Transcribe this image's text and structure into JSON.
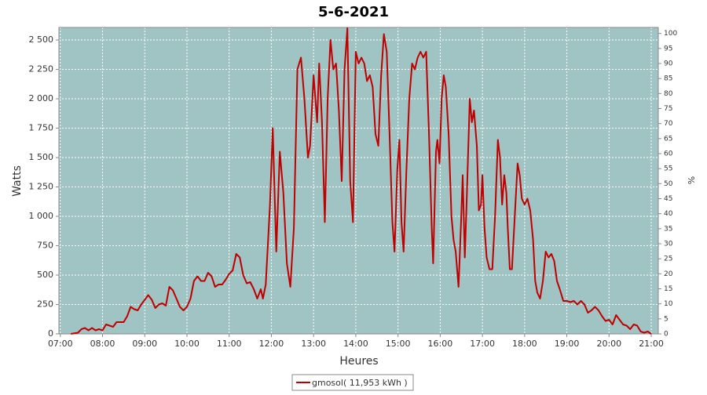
{
  "chart_data": {
    "type": "line",
    "title": "5-6-2021",
    "x_label": "Heures",
    "y_label": "Watts",
    "y2_label": "%",
    "x": [
      "07:15",
      "07:25",
      "07:30",
      "07:35",
      "07:40",
      "07:45",
      "07:50",
      "07:55",
      "08:00",
      "08:05",
      "08:15",
      "08:20",
      "08:25",
      "08:30",
      "08:35",
      "08:40",
      "08:45",
      "08:50",
      "08:55",
      "09:00",
      "09:05",
      "09:10",
      "09:15",
      "09:20",
      "09:25",
      "09:30",
      "09:35",
      "09:40",
      "09:45",
      "09:50",
      "09:55",
      "10:00",
      "10:05",
      "10:10",
      "10:15",
      "10:20",
      "10:25",
      "10:30",
      "10:35",
      "10:40",
      "10:45",
      "10:50",
      "10:55",
      "11:00",
      "11:05",
      "11:10",
      "11:15",
      "11:20",
      "11:25",
      "11:30",
      "11:35",
      "11:40",
      "11:45",
      "11:48",
      "11:52",
      "11:58",
      "12:02",
      "12:07",
      "12:12",
      "12:17",
      "12:22",
      "12:27",
      "12:32",
      "12:37",
      "12:42",
      "12:47",
      "12:52",
      "12:55",
      "13:00",
      "13:05",
      "13:08",
      "13:12",
      "13:16",
      "13:20",
      "13:24",
      "13:28",
      "13:32",
      "13:36",
      "13:40",
      "13:44",
      "13:48",
      "13:52",
      "13:56",
      "14:00",
      "14:04",
      "14:08",
      "14:12",
      "14:16",
      "14:20",
      "14:24",
      "14:28",
      "14:32",
      "14:36",
      "14:40",
      "14:44",
      "14:48",
      "14:52",
      "14:55",
      "14:59",
      "15:02",
      "15:05",
      "15:08",
      "15:12",
      "15:16",
      "15:20",
      "15:24",
      "15:28",
      "15:32",
      "15:36",
      "15:40",
      "15:44",
      "15:48",
      "15:50",
      "15:54",
      "15:56",
      "15:59",
      "16:02",
      "16:05",
      "16:08",
      "16:12",
      "16:16",
      "16:19",
      "16:22",
      "16:26",
      "16:30",
      "16:32",
      "16:35",
      "16:38",
      "16:42",
      "16:45",
      "16:48",
      "16:52",
      "16:55",
      "16:58",
      "17:00",
      "17:03",
      "17:06",
      "17:10",
      "17:14",
      "17:18",
      "17:22",
      "17:25",
      "17:28",
      "17:31",
      "17:34",
      "17:36",
      "17:39",
      "17:42",
      "17:46",
      "17:50",
      "17:53",
      "17:56",
      "18:00",
      "18:04",
      "18:08",
      "18:12",
      "18:15",
      "18:18",
      "18:22",
      "18:26",
      "18:30",
      "18:34",
      "18:38",
      "18:42",
      "18:46",
      "18:50",
      "18:55",
      "19:00",
      "19:05",
      "19:10",
      "19:15",
      "19:20",
      "19:25",
      "19:30",
      "19:35",
      "19:40",
      "19:45",
      "19:50",
      "19:55",
      "20:00",
      "20:05",
      "20:10",
      "20:15",
      "20:20",
      "20:25",
      "20:30",
      "20:35",
      "20:40",
      "20:45",
      "20:50",
      "20:55",
      "21:00"
    ],
    "series": [
      {
        "name": "gmosol( 11,953 kWh )",
        "color": "#c00000",
        "values": [
          0,
          10,
          40,
          50,
          30,
          50,
          30,
          40,
          30,
          80,
          60,
          100,
          100,
          100,
          150,
          230,
          210,
          200,
          250,
          290,
          330,
          290,
          220,
          250,
          260,
          240,
          400,
          370,
          300,
          230,
          200,
          230,
          300,
          450,
          490,
          450,
          450,
          520,
          490,
          400,
          420,
          420,
          460,
          510,
          540,
          680,
          650,
          500,
          430,
          440,
          380,
          300,
          380,
          300,
          420,
          1100,
          1750,
          700,
          1550,
          1200,
          600,
          400,
          900,
          2250,
          2350,
          2000,
          1500,
          1600,
          2200,
          1800,
          2300,
          1800,
          950,
          2000,
          2500,
          2250,
          2300,
          1900,
          1300,
          2250,
          2600,
          1300,
          950,
          2400,
          2300,
          2350,
          2300,
          2150,
          2200,
          2100,
          1700,
          1600,
          2200,
          2550,
          2400,
          1700,
          950,
          700,
          1400,
          1650,
          950,
          700,
          1400,
          2000,
          2300,
          2250,
          2350,
          2400,
          2350,
          2400,
          1700,
          900,
          600,
          1550,
          1650,
          1450,
          2000,
          2200,
          2100,
          1700,
          1000,
          800,
          700,
          400,
          1000,
          1350,
          650,
          1200,
          2000,
          1800,
          1900,
          1600,
          1050,
          1100,
          1350,
          900,
          650,
          550,
          550,
          1000,
          1650,
          1500,
          1100,
          1350,
          1200,
          900,
          550,
          550,
          1000,
          1450,
          1350,
          1150,
          1100,
          1150,
          1050,
          800,
          450,
          350,
          300,
          450,
          700,
          650,
          680,
          620,
          450,
          380,
          280,
          280,
          270,
          280,
          250,
          280,
          250,
          180,
          200,
          230,
          200,
          150,
          110,
          120,
          80,
          160,
          120,
          80,
          70,
          40,
          80,
          70,
          20,
          10,
          20,
          0
        ]
      }
    ],
    "xlim": [
      "06:58",
      "21:10"
    ],
    "xticks": [
      "07:00",
      "08:00",
      "09:00",
      "10:00",
      "11:00",
      "12:00",
      "13:00",
      "14:00",
      "15:00",
      "16:00",
      "17:00",
      "18:00",
      "19:00",
      "20:00",
      "21:00"
    ],
    "ylim": [
      0,
      2607
    ],
    "yticks": [
      0,
      250,
      500,
      750,
      {
        "value": 1000,
        "label": "1 000"
      },
      {
        "value": 1250,
        "label": "1 250"
      },
      {
        "value": 1500,
        "label": "1 500"
      },
      {
        "value": 1750,
        "label": "1 750"
      },
      {
        "value": 2000,
        "label": "2 000"
      },
      {
        "value": 2250,
        "label": "2 250"
      },
      {
        "value": 2500,
        "label": "2 500"
      }
    ],
    "y2lim": [
      0,
      102
    ],
    "y2ticks": [
      0,
      5,
      10,
      15,
      20,
      25,
      30,
      35,
      40,
      45,
      50,
      55,
      60,
      65,
      70,
      75,
      80,
      85,
      90,
      95,
      100
    ],
    "grid": true,
    "background": "#a0c4c4"
  }
}
